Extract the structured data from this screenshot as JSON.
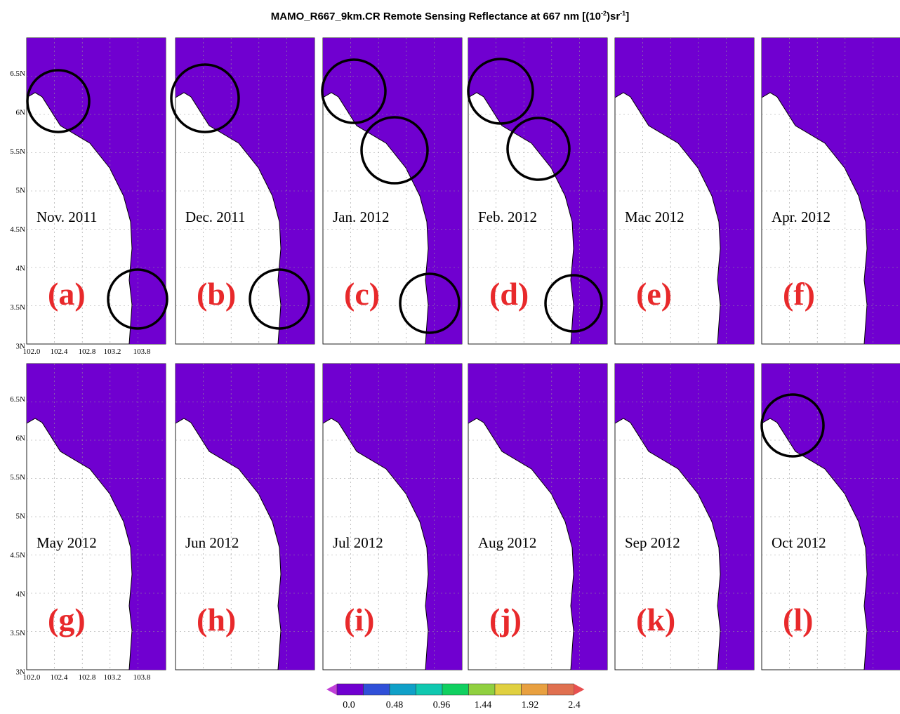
{
  "header": {
    "title": [
      "MAMO_R667_9km.CR Remote Sensing Reflectance at 667 nm [(10",
      "-2",
      ")sr",
      "-1",
      "]"
    ]
  },
  "axes": {
    "lat": [
      "6.5N",
      "6N",
      "5.5N",
      "5N",
      "4.5N",
      "4N",
      "3.5N",
      "3N"
    ],
    "lon": [
      "102.0",
      "102.4",
      "102.8",
      "103.2",
      "103.8"
    ]
  },
  "panels": [
    {
      "month": "Nov. 2011",
      "letter": "(a)"
    },
    {
      "month": "Dec. 2011",
      "letter": "(b)"
    },
    {
      "month": "Jan. 2012",
      "letter": "(c)"
    },
    {
      "month": "Feb. 2012",
      "letter": "(d)"
    },
    {
      "month": "Mac 2012",
      "letter": "(e)"
    },
    {
      "month": "Apr. 2012",
      "letter": "(f)"
    },
    {
      "month": "May 2012",
      "letter": "(g)"
    },
    {
      "month": "Jun 2012",
      "letter": "(h)"
    },
    {
      "month": "Jul 2012",
      "letter": "(i)"
    },
    {
      "month": "Aug 2012",
      "letter": "(j)"
    },
    {
      "month": "Sep 2012",
      "letter": "(k)"
    },
    {
      "month": "Oct 2012",
      "letter": "(l)"
    }
  ],
  "colorbar": {
    "labels": [
      "0.0",
      "0.48",
      "0.96",
      "1.44",
      "1.92",
      "2.4"
    ]
  }
}
